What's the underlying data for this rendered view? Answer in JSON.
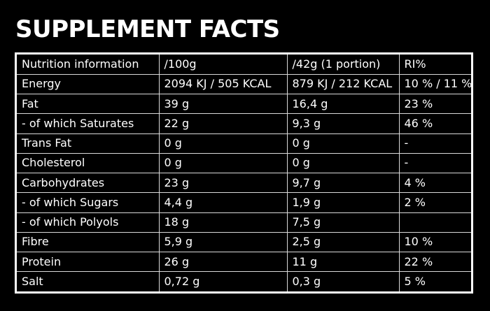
{
  "title": "SUPPLEMENT FACTS",
  "table": {
    "rows": [
      [
        "Nutrition information",
        "/100g",
        "/42g (1 portion)",
        "RI%"
      ],
      [
        "Energy",
        "2094 KJ / 505 KCAL",
        "879 KJ / 212 KCAL",
        "10 % / 11 %"
      ],
      [
        "Fat",
        "39 g",
        "16,4 g",
        "23 %"
      ],
      [
        "- of which Saturates",
        "22 g",
        "9,3 g",
        "46 %"
      ],
      [
        "Trans Fat",
        "0 g",
        "0 g",
        "-"
      ],
      [
        "Cholesterol",
        "0 g",
        "0 g",
        "-"
      ],
      [
        "Carbohydrates",
        "23 g",
        "9,7 g",
        "4 %"
      ],
      [
        "- of which Sugars",
        "4,4 g",
        "1,9 g",
        "2 %"
      ],
      [
        "- of which Polyols",
        "18 g",
        "7,5 g",
        ""
      ],
      [
        "Fibre",
        "5,9 g",
        "2,5 g",
        "10 %"
      ],
      [
        "Protein",
        "26 g",
        "11 g",
        "22 %"
      ],
      [
        "Salt",
        "0,72 g",
        "0,3 g",
        "5 %"
      ]
    ]
  }
}
